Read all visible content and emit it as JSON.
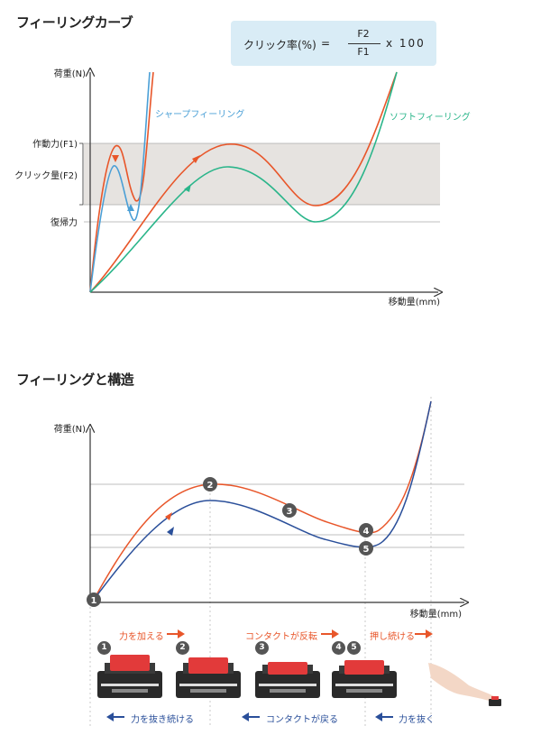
{
  "section1": {
    "title": "フィーリングカーブ",
    "formula": {
      "lhs": "クリック率(%)",
      "eq": "=",
      "numerator": "F2",
      "denominator": "F1",
      "multiplier": "x 100"
    },
    "y_axis_label": "荷重(N)",
    "x_axis_label": "移動量(mm)",
    "levels": {
      "f1": "作動力(F1)",
      "f2": "クリック量(F2)",
      "return": "復帰力"
    },
    "sharp_label": "シャープフィーリング",
    "soft_label": "ソフトフィーリング",
    "colors": {
      "sharp": "#4a9fd6",
      "soft": "#2ab58a",
      "press": "#e8562a",
      "band": "#e6e3e0"
    }
  },
  "section2": {
    "title": "フィーリングと構造",
    "y_axis_label": "荷重(N)",
    "x_axis_label": "移動量(mm)",
    "points": [
      "1",
      "2",
      "3",
      "4",
      "5"
    ],
    "top_actions": [
      "力を加える",
      "コンタクトが反転",
      "押し続ける"
    ],
    "bottom_actions": [
      "力を抜き続ける",
      "コンタクトが戻る",
      "力を抜く"
    ],
    "switch_badges": [
      "1",
      "2",
      "3",
      "4",
      "5"
    ],
    "colors": {
      "press": "#e8562a",
      "release": "#2a4f9a",
      "switch_red": "#e23a3a",
      "switch_dark": "#2a2a2a"
    }
  }
}
